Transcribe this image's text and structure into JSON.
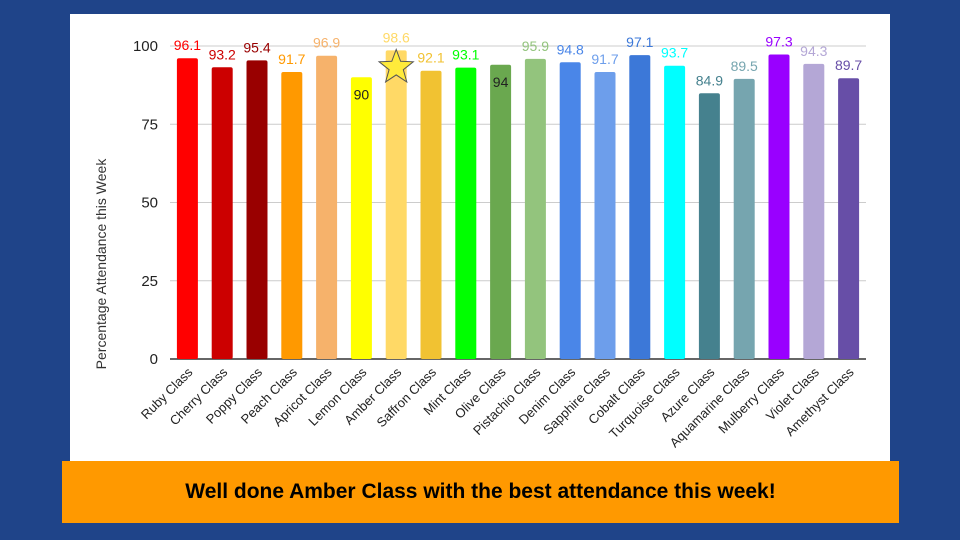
{
  "banner": {
    "text": "Well done Amber Class with the best attendance this week!",
    "color": "#ff9900"
  },
  "highlight": {
    "category": "Amber Class",
    "icon": "star-icon",
    "color": "#ffeb3b"
  },
  "chart_data": {
    "type": "bar",
    "ylabel": "Percentage Attendance this Week",
    "ylim": [
      0,
      100
    ],
    "yticks": [
      0,
      25,
      50,
      75,
      100
    ],
    "grid": true,
    "categories": [
      "Ruby Class",
      "Cherry Class",
      "Poppy Class",
      "Peach Class",
      "Apricot Class",
      "Lemon Class",
      "Amber Class",
      "Saffron Class",
      "Mint Class",
      "Olive Class",
      "Pistachio Class",
      "Denim Class",
      "Sapphire Class",
      "Cobalt Class",
      "Turquoise Class",
      "Azure Class",
      "Aquamarine Class",
      "Mulberry Class",
      "Violet Class",
      "Amethyst Class"
    ],
    "values": [
      96.1,
      93.2,
      95.4,
      91.7,
      96.9,
      90,
      98.6,
      92.1,
      93.1,
      94,
      95.9,
      94.8,
      91.7,
      97.1,
      93.7,
      84.9,
      89.5,
      97.3,
      94.3,
      89.7
    ],
    "data_labels": [
      "96.1",
      "93.2",
      "95.4",
      "91.7",
      "96.9",
      "90",
      "98.6",
      "92.1",
      "93.1",
      "94",
      "95.9",
      "94.8",
      "91.7",
      "97.1",
      "93.7",
      "84.9",
      "89.5",
      "97.3",
      "94.3",
      "89.7"
    ],
    "colors": [
      "#ff0000",
      "#cc0000",
      "#990000",
      "#ff9900",
      "#f6b26b",
      "#ffff00",
      "#ffd966",
      "#f1c232",
      "#00ff00",
      "#6aa84f",
      "#93c47d",
      "#4a86e8",
      "#6d9eeb",
      "#3c78d8",
      "#00ffff",
      "#45818e",
      "#76a5af",
      "#9900ff",
      "#b4a7d6",
      "#674ea7"
    ],
    "label_colors": [
      "#ff0000",
      "#cc0000",
      "#990000",
      "#ff9900",
      "#f6b26b",
      "#222222",
      "#ffd966",
      "#f1c232",
      "#00ff00",
      "#222222",
      "#93c47d",
      "#4a86e8",
      "#6d9eeb",
      "#3c78d8",
      "#00ffff",
      "#45818e",
      "#76a5af",
      "#9900ff",
      "#b4a7d6",
      "#674ea7"
    ]
  }
}
